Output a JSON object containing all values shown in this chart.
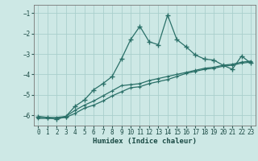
{
  "xlabel": "Humidex (Indice chaleur)",
  "background_color": "#cde8e5",
  "grid_color": "#aacfcc",
  "line_color": "#2a7068",
  "xlim": [
    -0.5,
    23.5
  ],
  "ylim": [
    -6.5,
    -0.6
  ],
  "xticks": [
    0,
    1,
    2,
    3,
    4,
    5,
    6,
    7,
    8,
    9,
    10,
    11,
    12,
    13,
    14,
    15,
    16,
    17,
    18,
    19,
    20,
    21,
    22,
    23
  ],
  "yticks": [
    -6,
    -5,
    -4,
    -3,
    -2,
    -1
  ],
  "line1_x": [
    0,
    1,
    2,
    3,
    4,
    5,
    6,
    7,
    8,
    9,
    10,
    11,
    12,
    13,
    14,
    15,
    16,
    17,
    18,
    19,
    20,
    21,
    22,
    23
  ],
  "line1_y": [
    -6.05,
    -6.1,
    -6.2,
    -6.05,
    -5.55,
    -5.25,
    -4.75,
    -4.45,
    -4.1,
    -3.25,
    -2.3,
    -1.65,
    -2.4,
    -2.55,
    -1.1,
    -2.3,
    -2.65,
    -3.05,
    -3.25,
    -3.3,
    -3.55,
    -3.75,
    -3.1,
    -3.45
  ],
  "line2_x": [
    0,
    1,
    2,
    3,
    4,
    5,
    6,
    7,
    8,
    9,
    10,
    11,
    12,
    13,
    14,
    15,
    16,
    17,
    18,
    19,
    20,
    21,
    22,
    23
  ],
  "line2_y": [
    -6.1,
    -6.1,
    -6.1,
    -6.05,
    -5.75,
    -5.5,
    -5.3,
    -5.05,
    -4.8,
    -4.55,
    -4.5,
    -4.45,
    -4.3,
    -4.2,
    -4.1,
    -4.0,
    -3.9,
    -3.8,
    -3.7,
    -3.65,
    -3.55,
    -3.5,
    -3.4,
    -3.35
  ],
  "line3_x": [
    0,
    1,
    2,
    3,
    4,
    5,
    6,
    7,
    8,
    9,
    10,
    11,
    12,
    13,
    14,
    15,
    16,
    17,
    18,
    19,
    20,
    21,
    22,
    23
  ],
  "line3_y": [
    -6.15,
    -6.15,
    -6.15,
    -6.1,
    -5.9,
    -5.65,
    -5.5,
    -5.3,
    -5.05,
    -4.85,
    -4.65,
    -4.6,
    -4.45,
    -4.35,
    -4.25,
    -4.1,
    -3.95,
    -3.85,
    -3.75,
    -3.7,
    -3.6,
    -3.55,
    -3.45,
    -3.4
  ]
}
